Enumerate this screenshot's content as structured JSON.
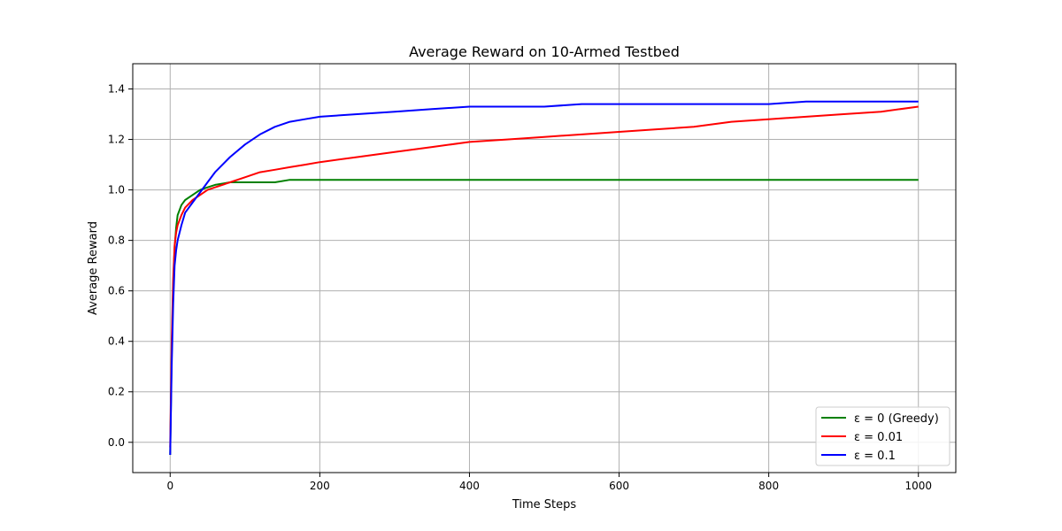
{
  "chart_data": {
    "type": "line",
    "title": "Average Reward on 10-Armed Testbed",
    "xlabel": "Time Steps",
    "ylabel": "Average Reward",
    "xlim": [
      -50,
      1050
    ],
    "ylim": [
      -0.12,
      1.5
    ],
    "xticks": [
      0,
      200,
      400,
      600,
      800,
      1000
    ],
    "yticks": [
      0.0,
      0.2,
      0.4,
      0.6,
      0.8,
      1.0,
      1.2,
      1.4
    ],
    "xtick_labels": [
      "0",
      "200",
      "400",
      "600",
      "800",
      "1000"
    ],
    "ytick_labels": [
      "0.0",
      "0.2",
      "0.4",
      "0.6",
      "0.8",
      "1.0",
      "1.2",
      "1.4"
    ],
    "grid": true,
    "legend_position": "bottom-right",
    "x": [
      0,
      2,
      4,
      6,
      8,
      10,
      15,
      20,
      30,
      40,
      50,
      60,
      80,
      100,
      120,
      140,
      160,
      180,
      200,
      250,
      300,
      350,
      400,
      450,
      500,
      550,
      600,
      650,
      700,
      750,
      800,
      850,
      900,
      950,
      1000
    ],
    "series": [
      {
        "name": "ε = 0 (Greedy)",
        "color": "#008000",
        "values": [
          -0.05,
          0.35,
          0.62,
          0.77,
          0.85,
          0.9,
          0.94,
          0.96,
          0.98,
          1.0,
          1.01,
          1.02,
          1.03,
          1.03,
          1.03,
          1.03,
          1.04,
          1.04,
          1.04,
          1.04,
          1.04,
          1.04,
          1.04,
          1.04,
          1.04,
          1.04,
          1.04,
          1.04,
          1.04,
          1.04,
          1.04,
          1.04,
          1.04,
          1.04,
          1.04
        ]
      },
      {
        "name": "ε = 0.01",
        "color": "#ff0000",
        "values": [
          -0.02,
          0.4,
          0.65,
          0.78,
          0.83,
          0.86,
          0.9,
          0.93,
          0.96,
          0.98,
          1.0,
          1.01,
          1.03,
          1.05,
          1.07,
          1.08,
          1.09,
          1.1,
          1.11,
          1.13,
          1.15,
          1.17,
          1.19,
          1.2,
          1.21,
          1.22,
          1.23,
          1.24,
          1.25,
          1.27,
          1.28,
          1.29,
          1.3,
          1.31,
          1.33
        ]
      },
      {
        "name": "ε = 0.1",
        "color": "#0000ff",
        "values": [
          -0.05,
          0.3,
          0.55,
          0.7,
          0.76,
          0.8,
          0.86,
          0.91,
          0.95,
          0.99,
          1.03,
          1.07,
          1.13,
          1.18,
          1.22,
          1.25,
          1.27,
          1.28,
          1.29,
          1.3,
          1.31,
          1.32,
          1.33,
          1.33,
          1.33,
          1.34,
          1.34,
          1.34,
          1.34,
          1.34,
          1.34,
          1.35,
          1.35,
          1.35,
          1.35
        ]
      }
    ]
  }
}
